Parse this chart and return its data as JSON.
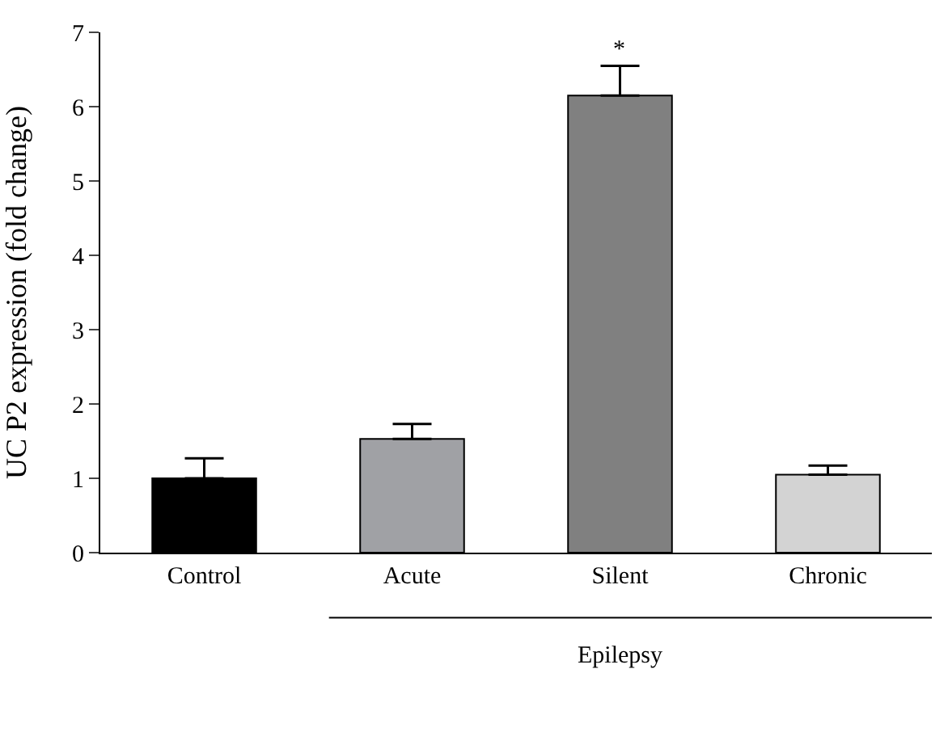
{
  "chart_data": {
    "type": "bar",
    "ylabel": "UC P2 expression (fold change)",
    "categories": [
      "Control",
      "Acute",
      "Silent",
      "Chronic"
    ],
    "values": [
      1.0,
      1.53,
      6.15,
      1.05
    ],
    "colors": [
      "#000000",
      "#a0a1a5",
      "#808080",
      "#d3d3d3"
    ],
    "errors": [
      [
        1.0,
        1.27
      ],
      [
        1.53,
        1.73
      ],
      [
        6.15,
        6.55
      ],
      [
        1.05,
        1.17
      ]
    ],
    "ylim": [
      0,
      7
    ],
    "yticks": [
      0,
      1,
      2,
      3,
      4,
      5,
      6,
      7
    ],
    "annotations": [
      {
        "text": "*",
        "x": "Silent",
        "y": 6.55
      },
      "Epilepsy"
    ]
  }
}
